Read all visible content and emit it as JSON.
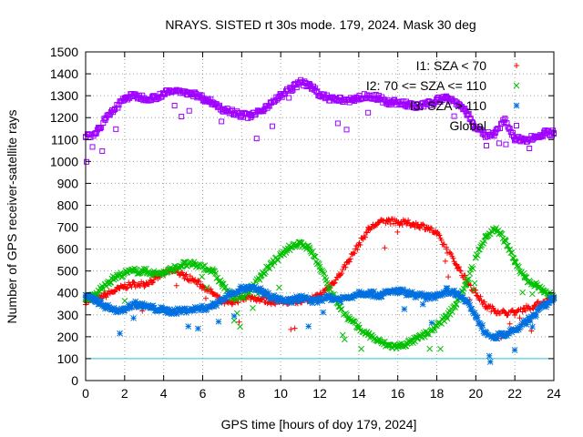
{
  "chart_data": {
    "type": "scatter",
    "title": "NRAYS. SISTED rt 30s mode. 179, 2024. Mask 30 deg",
    "xlabel": "GPS time [hours of doy 179, 2024]",
    "ylabel": "Number of GPS receiver-satellite rays",
    "xlim": [
      0,
      24
    ],
    "ylim": [
      0,
      1500
    ],
    "xticks": [
      0,
      2,
      4,
      6,
      8,
      10,
      12,
      14,
      16,
      18,
      20,
      22,
      24
    ],
    "yticks": [
      0,
      100,
      200,
      300,
      400,
      500,
      600,
      700,
      800,
      900,
      1000,
      1100,
      1200,
      1300,
      1400,
      1500
    ],
    "grid": true,
    "legend_position": "top-right",
    "threshold_line": {
      "value": 100,
      "color": "#2ec4d6"
    },
    "series": [
      {
        "name": "I1: SZA < 70",
        "color": "#ff0000",
        "marker": "+",
        "x": [
          0,
          0.5,
          1,
          1.5,
          2,
          2.5,
          3,
          3.5,
          4,
          4.5,
          5,
          5.5,
          6,
          6.5,
          7,
          7.5,
          8,
          8.5,
          9,
          9.5,
          10,
          10.5,
          11,
          11.5,
          12,
          12.5,
          13,
          13.5,
          14,
          14.5,
          15,
          15.5,
          16,
          16.5,
          17,
          17.5,
          18,
          18.5,
          19,
          19.5,
          20,
          20.5,
          21,
          21.5,
          22,
          22.5,
          23,
          23.5,
          24
        ],
        "y": [
          360,
          370,
          390,
          410,
          430,
          440,
          440,
          460,
          490,
          500,
          480,
          460,
          430,
          400,
          360,
          350,
          380,
          380,
          370,
          360,
          360,
          360,
          360,
          370,
          390,
          430,
          480,
          550,
          620,
          690,
          720,
          730,
          720,
          720,
          710,
          700,
          670,
          600,
          530,
          460,
          400,
          340,
          320,
          310,
          310,
          330,
          340,
          360,
          380
        ]
      },
      {
        "name": "I2: 70 <= SZA <= 110",
        "color": "#00c000",
        "marker": "x",
        "x": [
          0,
          0.5,
          1,
          1.5,
          2,
          2.5,
          3,
          3.5,
          4,
          4.5,
          5,
          5.5,
          6,
          6.5,
          7,
          7.5,
          8,
          8.5,
          9,
          9.5,
          10,
          10.5,
          11,
          11.5,
          12,
          12.5,
          13,
          13.5,
          14,
          14.5,
          15,
          15.5,
          16,
          16.5,
          17,
          17.5,
          18,
          18.5,
          19,
          19.5,
          20,
          20.5,
          21,
          21.5,
          22,
          22.5,
          23,
          23.5,
          24
        ],
        "y": [
          370,
          390,
          440,
          470,
          490,
          500,
          500,
          490,
          490,
          510,
          530,
          530,
          520,
          500,
          440,
          380,
          380,
          420,
          480,
          530,
          570,
          610,
          630,
          600,
          520,
          420,
          340,
          280,
          240,
          210,
          180,
          160,
          155,
          170,
          190,
          215,
          250,
          290,
          350,
          440,
          560,
          660,
          690,
          640,
          540,
          470,
          440,
          410,
          380
        ]
      },
      {
        "name": "I3: SZA > 110",
        "color": "#0070e0",
        "marker": "*",
        "x": [
          0,
          0.5,
          1,
          1.5,
          2,
          2.5,
          3,
          3.5,
          4,
          4.5,
          5,
          5.5,
          6,
          6.5,
          7,
          7.5,
          8,
          8.5,
          9,
          9.5,
          10,
          10.5,
          11,
          11.5,
          12,
          12.5,
          13,
          13.5,
          14,
          14.5,
          15,
          15.5,
          16,
          16.5,
          17,
          17.5,
          18,
          18.5,
          19,
          19.5,
          20,
          20.5,
          21,
          21.5,
          22,
          22.5,
          23,
          23.5,
          24
        ],
        "y": [
          380,
          370,
          340,
          320,
          330,
          350,
          340,
          330,
          320,
          315,
          320,
          325,
          330,
          340,
          370,
          400,
          420,
          420,
          410,
          380,
          370,
          360,
          380,
          360,
          370,
          380,
          370,
          380,
          400,
          400,
          390,
          400,
          410,
          400,
          390,
          380,
          390,
          410,
          400,
          370,
          290,
          220,
          200,
          210,
          230,
          260,
          300,
          340,
          380
        ]
      },
      {
        "name": "Global",
        "color": "#a000ff",
        "marker": "square",
        "x": [
          0,
          0.5,
          1,
          1.5,
          2,
          2.5,
          3,
          3.5,
          4,
          4.5,
          5,
          5.5,
          6,
          6.5,
          7,
          7.5,
          8,
          8.5,
          9,
          9.5,
          10,
          10.5,
          11,
          11.5,
          12,
          12.5,
          13,
          13.5,
          14,
          14.5,
          15,
          15.5,
          16,
          16.5,
          17,
          17.5,
          18,
          18.5,
          19,
          19.5,
          20,
          20.5,
          21,
          21.5,
          22,
          22.5,
          23,
          23.5,
          24
        ],
        "y": [
          1110,
          1130,
          1190,
          1240,
          1290,
          1300,
          1290,
          1290,
          1310,
          1320,
          1320,
          1310,
          1290,
          1270,
          1240,
          1230,
          1210,
          1210,
          1230,
          1270,
          1300,
          1330,
          1360,
          1350,
          1300,
          1290,
          1280,
          1280,
          1290,
          1300,
          1290,
          1270,
          1270,
          1260,
          1250,
          1260,
          1280,
          1290,
          1270,
          1230,
          1150,
          1120,
          1130,
          1190,
          1100,
          1100,
          1110,
          1130,
          1130
        ]
      }
    ]
  }
}
